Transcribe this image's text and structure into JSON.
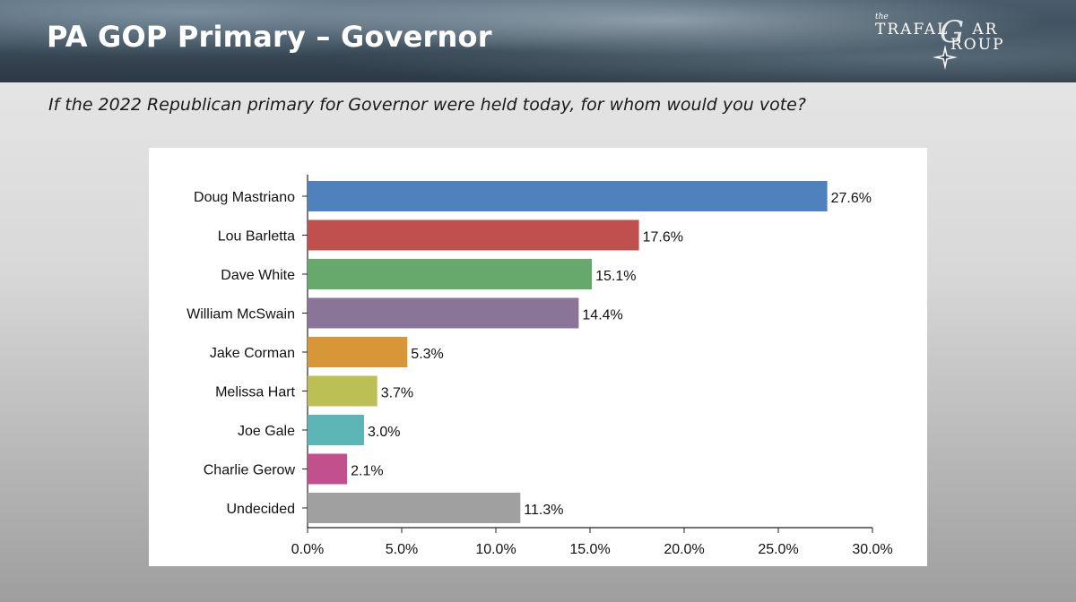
{
  "slide": {
    "title": "PA GOP Primary – Governor",
    "question": "If the 2022 Republican primary for Governor were held today, for whom would you vote?"
  },
  "logo": {
    "small_word": "the",
    "word_top": "TRAFAL",
    "word_bottom": "ROUP",
    "letter_g": "G",
    "letters_ar": "AR",
    "icon": "compass-star-icon"
  },
  "chart_data": {
    "type": "bar",
    "orientation": "horizontal",
    "title": "",
    "xlabel": "",
    "ylabel": "",
    "categories": [
      "Doug Mastriano",
      "Lou Barletta",
      "Dave White",
      "William McSwain",
      "Jake Corman",
      "Melissa Hart",
      "Joe Gale",
      "Charlie Gerow",
      "Undecided"
    ],
    "values": [
      27.6,
      17.6,
      15.1,
      14.4,
      5.3,
      3.7,
      3.0,
      2.1,
      11.3
    ],
    "value_labels": [
      "27.6%",
      "17.6%",
      "15.1%",
      "14.4%",
      "5.3%",
      "3.7%",
      "3.0%",
      "2.1%",
      "11.3%"
    ],
    "colors": [
      "#4f81bd",
      "#c0504d",
      "#67a86c",
      "#8a7598",
      "#d79637",
      "#bcbf53",
      "#5bb6b5",
      "#c2508d",
      "#a0a0a0"
    ],
    "xlim": [
      0,
      30
    ],
    "xticks": [
      0,
      5,
      10,
      15,
      20,
      25,
      30
    ],
    "xtick_labels": [
      "0.0%",
      "5.0%",
      "10.0%",
      "15.0%",
      "20.0%",
      "25.0%",
      "30.0%"
    ],
    "grid": false,
    "legend": "none"
  }
}
